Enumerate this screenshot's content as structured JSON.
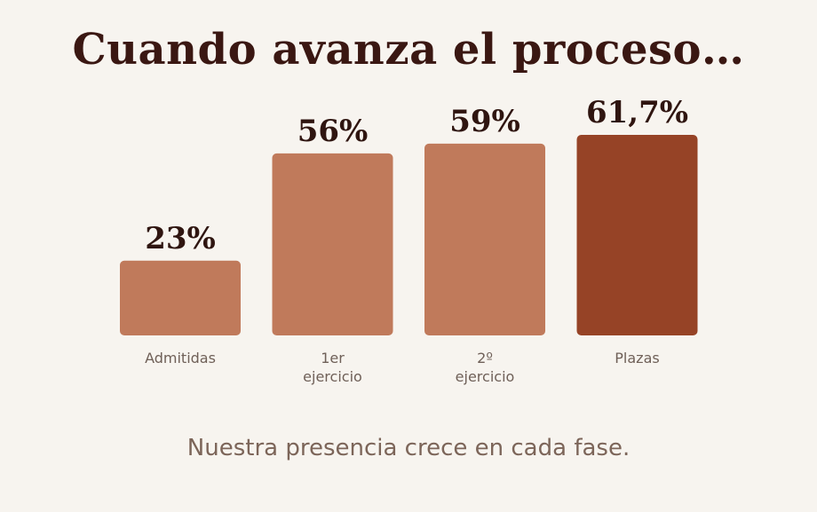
{
  "chart_data": {
    "type": "bar",
    "title": "Cuando avanza el proceso…",
    "subtitle": "Nuestra presencia crece en cada fase.",
    "categories": [
      [
        "Admitidas"
      ],
      [
        "1er",
        "ejercicio"
      ],
      [
        "2º",
        "ejercicio"
      ],
      [
        "Plazas"
      ]
    ],
    "values": [
      23,
      56,
      59,
      61.7
    ],
    "value_labels": [
      "23%",
      "56%",
      "59%",
      "61,7%"
    ],
    "bar_colors": [
      "#c07a5b",
      "#c07a5b",
      "#c07a5b",
      "#964326"
    ],
    "ylim": [
      0,
      61.7
    ],
    "grid": false,
    "legend": "none"
  }
}
